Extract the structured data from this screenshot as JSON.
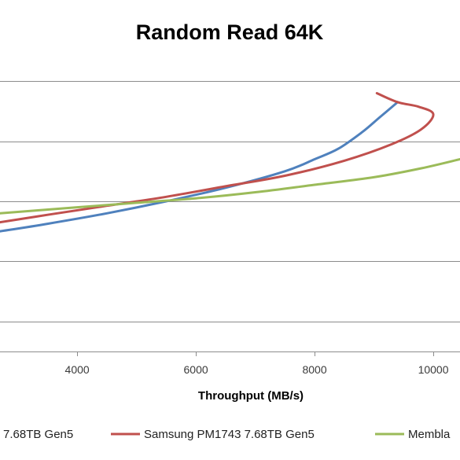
{
  "chart_data": {
    "type": "line",
    "title": "Random Read 64K",
    "xlabel": "Throughput (MB/s)",
    "ylabel": "",
    "xlim": [
      2700,
      10450
    ],
    "ylim": [
      0,
      100
    ],
    "grid": true,
    "legend_position": "bottom",
    "x_ticks": [
      "4000",
      "6000",
      "8000",
      "10000"
    ],
    "x_tick_values": [
      4000,
      6000,
      8000,
      10000
    ],
    "y_grid_values": [
      10,
      30,
      50,
      70,
      90
    ],
    "series": [
      {
        "name": "7.68TB Gen5",
        "color": "#4f81bd",
        "points": [
          [
            2700,
            40
          ],
          [
            3500,
            42.5
          ],
          [
            4500,
            46
          ],
          [
            5500,
            50
          ],
          [
            6500,
            54.5
          ],
          [
            7500,
            60
          ],
          [
            8000,
            64
          ],
          [
            8400,
            67.5
          ],
          [
            8800,
            73
          ],
          [
            9100,
            78
          ],
          [
            9400,
            83
          ]
        ]
      },
      {
        "name": "Samsung PM1743 7.68TB Gen5",
        "color": "#c0504d",
        "points": [
          [
            2700,
            43
          ],
          [
            3500,
            45.5
          ],
          [
            4500,
            48.5
          ],
          [
            5500,
            51.5
          ],
          [
            6500,
            55
          ],
          [
            7500,
            58.5
          ],
          [
            8500,
            63.5
          ],
          [
            9300,
            69
          ],
          [
            9800,
            74
          ],
          [
            10000,
            79
          ],
          [
            9750,
            81.5
          ],
          [
            9400,
            83
          ],
          [
            9050,
            86
          ]
        ]
      },
      {
        "name": "Membla",
        "color": "#9bbb59",
        "points": [
          [
            2700,
            46
          ],
          [
            4000,
            48
          ],
          [
            5000,
            49.5
          ],
          [
            6000,
            51
          ],
          [
            7000,
            53
          ],
          [
            8000,
            55.5
          ],
          [
            9000,
            58
          ],
          [
            9800,
            61
          ],
          [
            10450,
            64
          ]
        ]
      }
    ]
  }
}
